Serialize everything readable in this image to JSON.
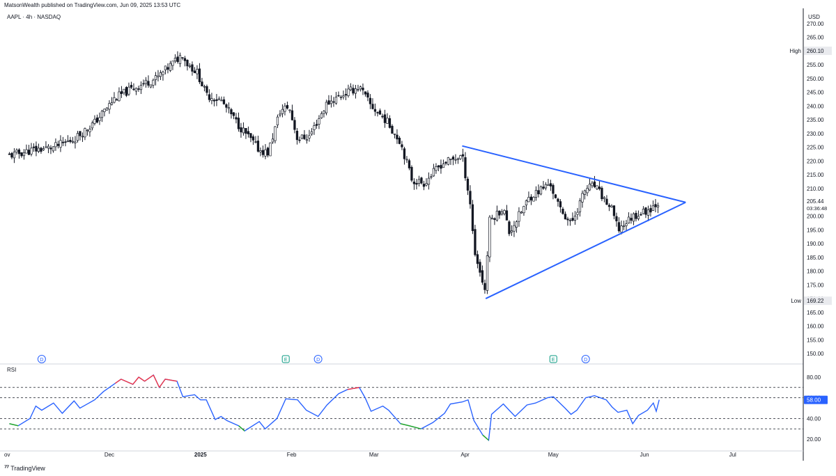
{
  "header": {
    "published": "MatsonWealth published on TradingView.com, Jun 09, 2025 13:53 UTC",
    "symbol": "AAPL · 4h · NASDAQ",
    "currency": "USD"
  },
  "rsi_panel": {
    "title": "RSI",
    "value_badge": "58.00"
  },
  "price_badges": {
    "high_label": "High",
    "high_value": "260.10",
    "low_label": "Low",
    "low_value": "169.22",
    "current_value": "205.44",
    "countdown": "03:36:48"
  },
  "footer": {
    "brand": "TradingView"
  },
  "colors": {
    "up_candle": "#ffffff",
    "candle_line": "#131722",
    "trendline": "#2962ff",
    "rsi_line": "#2962ff",
    "rsi_overbought": "#f23645",
    "rsi_oversold": "#22ab1c",
    "event_dividend": "#2962ff",
    "event_earnings": "#089981"
  },
  "events": [
    {
      "type": "dividend",
      "label": "D",
      "date": "2024-11-08"
    },
    {
      "type": "earnings",
      "label": "E",
      "date": "2025-01-30"
    },
    {
      "type": "dividend",
      "label": "D",
      "date": "2025-02-10"
    },
    {
      "type": "earnings",
      "label": "E",
      "date": "2025-05-01"
    },
    {
      "type": "dividend",
      "label": "D",
      "date": "2025-05-12"
    }
  ],
  "chart_data": [
    {
      "type": "candlestick",
      "title": "AAPL · 4h · NASDAQ",
      "x_axis": {
        "tick_labels": [
          "ov",
          "Dec",
          "2025",
          "Feb",
          "Mar",
          "Apr",
          "May",
          "Jun",
          "Jul"
        ],
        "tick_dates": [
          "2024-11-01",
          "2024-12-01",
          "2025-01-01",
          "2025-02-01",
          "2025-03-01",
          "2025-04-01",
          "2025-05-01",
          "2025-06-01",
          "2025-07-01"
        ]
      },
      "y_axis": {
        "unit": "USD",
        "range": [
          147,
          274
        ],
        "tick_values": [
          150,
          155,
          160,
          165,
          170,
          175,
          180,
          185,
          190,
          195,
          200,
          205,
          210,
          215,
          220,
          225,
          230,
          235,
          240,
          245,
          250,
          255,
          260,
          265,
          270
        ]
      },
      "series": [
        {
          "name": "AAPL",
          "close_path": [
            [
              "2024-10-28",
              222
            ],
            [
              "2024-11-05",
              224
            ],
            [
              "2024-11-12",
              225
            ],
            [
              "2024-11-19",
              228
            ],
            [
              "2024-11-26",
              234
            ],
            [
              "2024-12-03",
              243
            ],
            [
              "2024-12-10",
              247
            ],
            [
              "2024-12-17",
              250
            ],
            [
              "2024-12-26",
              259
            ],
            [
              "2024-12-27",
              256
            ],
            [
              "2024-12-31",
              252
            ],
            [
              "2025-01-03",
              244
            ],
            [
              "2025-01-08",
              242
            ],
            [
              "2025-01-14",
              233
            ],
            [
              "2025-01-21",
              224
            ],
            [
              "2025-01-24",
              223
            ],
            [
              "2025-01-28",
              238
            ],
            [
              "2025-01-31",
              240
            ],
            [
              "2025-02-03",
              228
            ],
            [
              "2025-02-07",
              229
            ],
            [
              "2025-02-13",
              241
            ],
            [
              "2025-02-18",
              244
            ],
            [
              "2025-02-24",
              247
            ],
            [
              "2025-02-28",
              240
            ],
            [
              "2025-03-05",
              235
            ],
            [
              "2025-03-10",
              227
            ],
            [
              "2025-03-14",
              213
            ],
            [
              "2025-03-18",
              212
            ],
            [
              "2025-03-24",
              219
            ],
            [
              "2025-03-31",
              222
            ],
            [
              "2025-04-03",
              203
            ],
            [
              "2025-04-04",
              188
            ],
            [
              "2025-04-08",
              172
            ],
            [
              "2025-04-09",
              198
            ],
            [
              "2025-04-14",
              203
            ],
            [
              "2025-04-16",
              194
            ],
            [
              "2025-04-23",
              207
            ],
            [
              "2025-04-30",
              212
            ],
            [
              "2025-05-02",
              205
            ],
            [
              "2025-05-07",
              197
            ],
            [
              "2025-05-12",
              210
            ],
            [
              "2025-05-15",
              211
            ],
            [
              "2025-05-21",
              202
            ],
            [
              "2025-05-23",
              195
            ],
            [
              "2025-05-28",
              200
            ],
            [
              "2025-06-02",
              202
            ],
            [
              "2025-06-06",
              205.44
            ]
          ],
          "highlighted": {
            "high": 260.1,
            "low": 169.22,
            "last": 205.44
          }
        }
      ],
      "annotations": [
        {
          "type": "symmetrical-triangle",
          "upper_line": {
            "from": [
              "2025-03-31",
              225.5
            ],
            "to": [
              "2025-06-15",
              205
            ]
          },
          "lower_line": {
            "from": [
              "2025-04-08",
              170
            ],
            "to": [
              "2025-06-15",
              205
            ]
          }
        }
      ],
      "grid": false
    },
    {
      "type": "line",
      "title": "RSI",
      "y_axis": {
        "range": [
          10,
          90
        ],
        "tick_values": [
          20,
          40,
          60,
          80
        ],
        "bands": [
          30,
          40,
          60,
          70
        ]
      },
      "series": [
        {
          "name": "RSI",
          "values": [
            [
              "2024-10-28",
              35
            ],
            [
              "2024-10-31",
              33
            ],
            [
              "2024-11-04",
              40
            ],
            [
              "2024-11-06",
              52
            ],
            [
              "2024-11-08",
              48
            ],
            [
              "2024-11-12",
              55
            ],
            [
              "2024-11-15",
              45
            ],
            [
              "2024-11-19",
              57
            ],
            [
              "2024-11-21",
              50
            ],
            [
              "2024-11-26",
              58
            ],
            [
              "2024-11-29",
              66
            ],
            [
              "2024-12-03",
              74
            ],
            [
              "2024-12-05",
              78
            ],
            [
              "2024-12-09",
              73
            ],
            [
              "2024-12-11",
              80
            ],
            [
              "2024-12-13",
              76
            ],
            [
              "2024-12-16",
              82
            ],
            [
              "2024-12-18",
              70
            ],
            [
              "2024-12-20",
              78
            ],
            [
              "2024-12-24",
              76
            ],
            [
              "2024-12-26",
              61
            ],
            [
              "2024-12-30",
              63
            ],
            [
              "2025-01-01",
              58
            ],
            [
              "2025-01-03",
              58
            ],
            [
              "2025-01-06",
              39
            ],
            [
              "2025-01-08",
              42
            ],
            [
              "2025-01-10",
              38
            ],
            [
              "2025-01-14",
              33
            ],
            [
              "2025-01-16",
              28
            ],
            [
              "2025-01-21",
              37
            ],
            [
              "2025-01-23",
              30
            ],
            [
              "2025-01-27",
              40
            ],
            [
              "2025-01-30",
              59
            ],
            [
              "2025-02-03",
              58
            ],
            [
              "2025-02-06",
              48
            ],
            [
              "2025-02-10",
              42
            ],
            [
              "2025-02-13",
              53
            ],
            [
              "2025-02-17",
              64
            ],
            [
              "2025-02-20",
              68
            ],
            [
              "2025-02-24",
              70
            ],
            [
              "2025-02-26",
              60
            ],
            [
              "2025-02-28",
              47
            ],
            [
              "2025-03-04",
              52
            ],
            [
              "2025-03-06",
              48
            ],
            [
              "2025-03-10",
              35
            ],
            [
              "2025-03-13",
              33
            ],
            [
              "2025-03-17",
              30
            ],
            [
              "2025-03-21",
              36
            ],
            [
              "2025-03-25",
              45
            ],
            [
              "2025-03-27",
              54
            ],
            [
              "2025-03-31",
              56
            ],
            [
              "2025-04-02",
              58
            ],
            [
              "2025-04-04",
              38
            ],
            [
              "2025-04-07",
              24
            ],
            [
              "2025-04-09",
              19
            ],
            [
              "2025-04-10",
              44
            ],
            [
              "2025-04-14",
              54
            ],
            [
              "2025-04-16",
              48
            ],
            [
              "2025-04-18",
              42
            ],
            [
              "2025-04-22",
              53
            ],
            [
              "2025-04-25",
              55
            ],
            [
              "2025-04-29",
              60
            ],
            [
              "2025-05-01",
              61
            ],
            [
              "2025-05-05",
              50
            ],
            [
              "2025-05-07",
              44
            ],
            [
              "2025-05-09",
              48
            ],
            [
              "2025-05-12",
              60
            ],
            [
              "2025-05-15",
              62
            ],
            [
              "2025-05-19",
              58
            ],
            [
              "2025-05-21",
              51
            ],
            [
              "2025-05-23",
              46
            ],
            [
              "2025-05-26",
              48
            ],
            [
              "2025-05-28",
              35
            ],
            [
              "2025-05-30",
              43
            ],
            [
              "2025-06-02",
              48
            ],
            [
              "2025-06-04",
              55
            ],
            [
              "2025-06-05",
              47
            ],
            [
              "2025-06-06",
              58
            ]
          ]
        }
      ]
    }
  ]
}
